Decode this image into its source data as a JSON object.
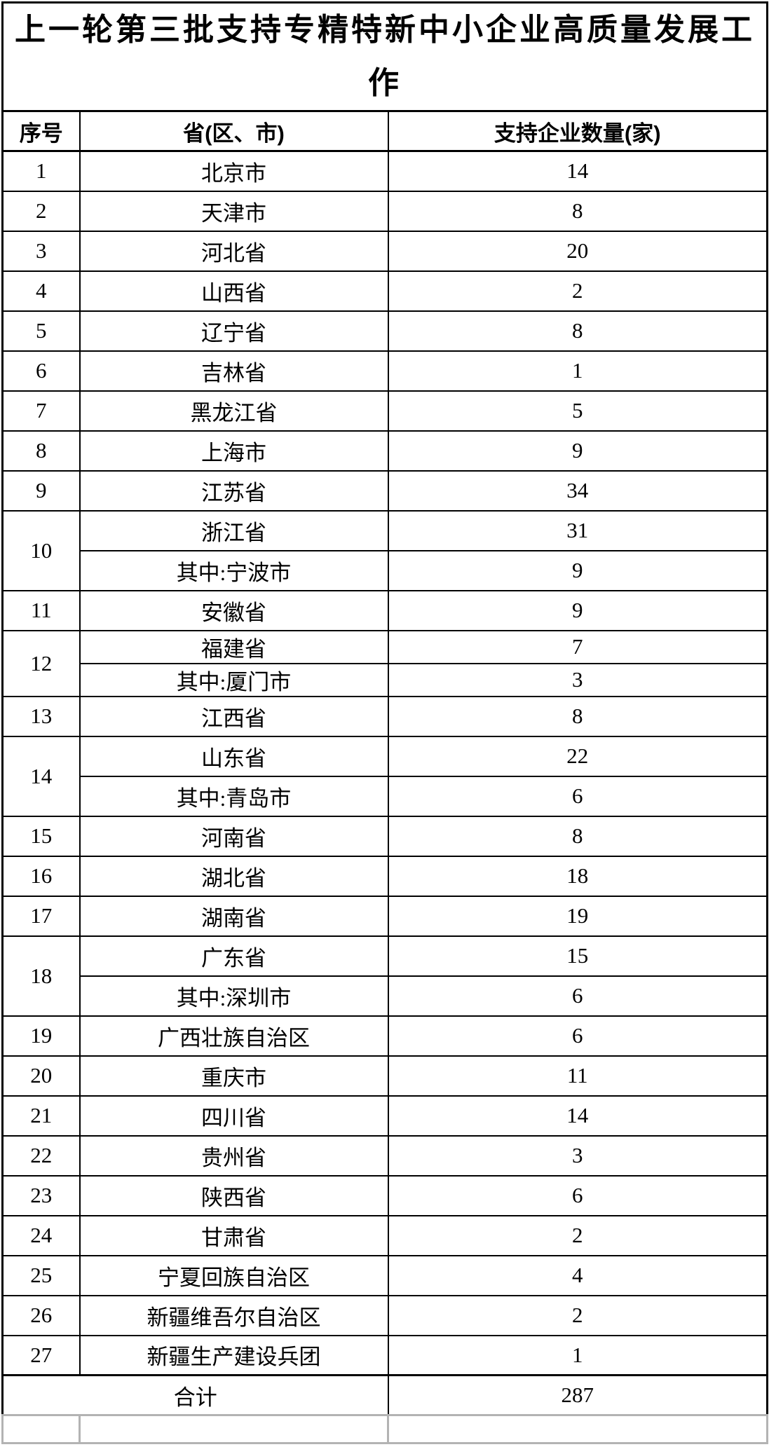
{
  "title": "上一轮第三批支持专精特新中小企业高质量发展工作",
  "table": {
    "headers": {
      "seq": "序号",
      "province": "省(区、市)",
      "count": "支持企业数量(家)"
    },
    "rows": [
      {
        "no": "1",
        "province": "北京市",
        "value": "14"
      },
      {
        "no": "2",
        "province": "天津市",
        "value": "8"
      },
      {
        "no": "3",
        "province": "河北省",
        "value": "20"
      },
      {
        "no": "4",
        "province": "山西省",
        "value": "2"
      },
      {
        "no": "5",
        "province": "辽宁省",
        "value": "8"
      },
      {
        "no": "6",
        "province": "吉林省",
        "value": "1"
      },
      {
        "no": "7",
        "province": "黑龙江省",
        "value": "5"
      },
      {
        "no": "8",
        "province": "上海市",
        "value": "9"
      },
      {
        "no": "9",
        "province": "江苏省",
        "value": "34"
      },
      {
        "no": "10",
        "province": "浙江省",
        "value": "31",
        "sub": {
          "province": "其中:宁波市",
          "value": "9"
        }
      },
      {
        "no": "11",
        "province": "安徽省",
        "value": "9"
      },
      {
        "no": "12",
        "province": "福建省",
        "value": "7",
        "compact": true,
        "sub": {
          "province": "其中:厦门市",
          "value": "3"
        }
      },
      {
        "no": "13",
        "province": "江西省",
        "value": "8"
      },
      {
        "no": "14",
        "province": "山东省",
        "value": "22",
        "sub": {
          "province": "其中:青岛市",
          "value": "6"
        }
      },
      {
        "no": "15",
        "province": "河南省",
        "value": "8"
      },
      {
        "no": "16",
        "province": "湖北省",
        "value": "18"
      },
      {
        "no": "17",
        "province": "湖南省",
        "value": "19"
      },
      {
        "no": "18",
        "province": "广东省",
        "value": "15",
        "sub": {
          "province": "其中:深圳市",
          "value": "6"
        }
      },
      {
        "no": "19",
        "province": "广西壮族自治区",
        "value": "6"
      },
      {
        "no": "20",
        "province": "重庆市",
        "value": "11"
      },
      {
        "no": "21",
        "province": "四川省",
        "value": "14"
      },
      {
        "no": "22",
        "province": "贵州省",
        "value": "3"
      },
      {
        "no": "23",
        "province": "陕西省",
        "value": "6"
      },
      {
        "no": "24",
        "province": "甘肃省",
        "value": "2"
      },
      {
        "no": "25",
        "province": "宁夏回族自治区",
        "value": "4"
      },
      {
        "no": "26",
        "province": "新疆维吾尔自治区",
        "value": "2"
      },
      {
        "no": "27",
        "province": "新疆生产建设兵团",
        "value": "1"
      }
    ],
    "total": {
      "label": "合计",
      "value": "287"
    }
  },
  "colors": {
    "text": "#000000",
    "border": "#000000",
    "muted_border": "#b3b3b3",
    "background": "#ffffff"
  }
}
